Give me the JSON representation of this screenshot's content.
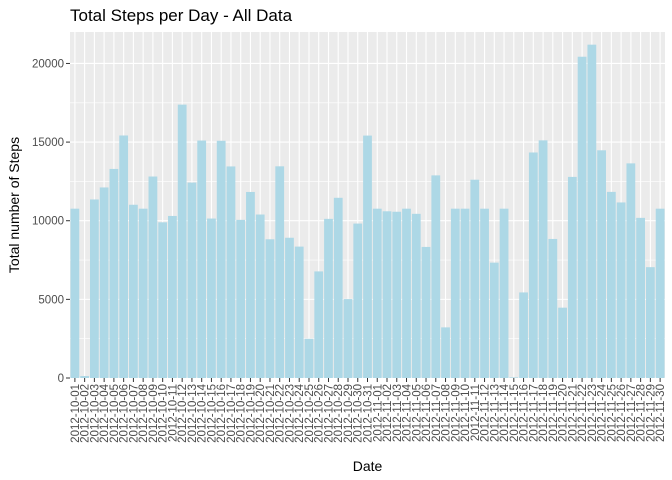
{
  "chart_data": {
    "type": "bar",
    "title": "Total Steps per Day - All Data",
    "xlabel": "Date",
    "ylabel": "Total number of Steps",
    "ylim": [
      0,
      22000
    ],
    "yticks": [
      0,
      5000,
      10000,
      15000,
      20000
    ],
    "grid": true,
    "colors": {
      "bar": "#add8e6",
      "panel": "#ebebeb",
      "grid": "#ffffff",
      "text": "#4d4d4d"
    },
    "categories": [
      "2012-10-01",
      "2012-10-02",
      "2012-10-03",
      "2012-10-04",
      "2012-10-05",
      "2012-10-06",
      "2012-10-07",
      "2012-10-08",
      "2012-10-09",
      "2012-10-10",
      "2012-10-11",
      "2012-10-12",
      "2012-10-13",
      "2012-10-14",
      "2012-10-15",
      "2012-10-16",
      "2012-10-17",
      "2012-10-18",
      "2012-10-19",
      "2012-10-20",
      "2012-10-21",
      "2012-10-22",
      "2012-10-23",
      "2012-10-24",
      "2012-10-25",
      "2012-10-26",
      "2012-10-27",
      "2012-10-28",
      "2012-10-29",
      "2012-10-30",
      "2012-10-31",
      "2012-11-01",
      "2012-11-02",
      "2012-11-03",
      "2012-11-04",
      "2012-11-05",
      "2012-11-06",
      "2012-11-07",
      "2012-11-08",
      "2012-11-09",
      "2012-11-10",
      "2012-11-11",
      "2012-11-12",
      "2012-11-13",
      "2012-11-14",
      "2012-11-15",
      "2012-11-16",
      "2012-11-17",
      "2012-11-18",
      "2012-11-19",
      "2012-11-20",
      "2012-11-21",
      "2012-11-22",
      "2012-11-23",
      "2012-11-24",
      "2012-11-25",
      "2012-11-26",
      "2012-11-27",
      "2012-11-28",
      "2012-11-29",
      "2012-11-30"
    ],
    "values": [
      10766,
      126,
      11352,
      12116,
      13294,
      15420,
      11015,
      10766,
      12811,
      9900,
      10304,
      17382,
      12426,
      15098,
      10139,
      15084,
      13452,
      10056,
      11829,
      10395,
      8821,
      13460,
      8918,
      8355,
      2492,
      6778,
      10119,
      11458,
      5018,
      9819,
      15414,
      10766,
      10600,
      10571,
      10766,
      10439,
      8334,
      12883,
      3219,
      10766,
      10766,
      12608,
      10765,
      7336,
      10766,
      41,
      5441,
      14339,
      15110,
      8841,
      4472,
      12787,
      20427,
      21194,
      14478,
      11834,
      11162,
      13646,
      10183,
      7047,
      10766
    ]
  }
}
